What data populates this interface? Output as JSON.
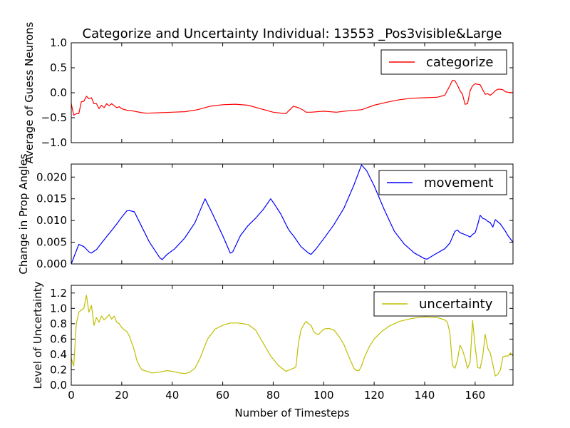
{
  "chart_data": [
    {
      "type": "line",
      "title": "Categorize and Uncertainty Individual: 13553 _Pos3visible&Large",
      "ylabel": "Average of Guess Neurons",
      "xlabel": "",
      "xlim": [
        0,
        175
      ],
      "ylim": [
        -1.0,
        1.0
      ],
      "yticks": [
        "1.0",
        "0.5",
        "0.0",
        "−0.5",
        "−1.0"
      ],
      "ytick_values": [
        1.0,
        0.5,
        0.0,
        -0.5,
        -1.0
      ],
      "legend_position": "top-right",
      "series": [
        {
          "name": "categorize",
          "color": "#ff0000",
          "x": [
            0,
            1,
            2,
            3,
            4,
            5,
            6,
            7,
            8,
            9,
            10,
            11,
            12,
            13,
            14,
            15,
            16,
            17,
            18,
            19,
            20,
            22,
            24,
            26,
            28,
            30,
            35,
            40,
            45,
            50,
            55,
            60,
            65,
            70,
            75,
            80,
            85,
            88,
            90,
            92,
            93,
            95,
            100,
            105,
            110,
            115,
            120,
            125,
            130,
            135,
            140,
            145,
            148,
            150,
            151,
            152,
            153,
            154,
            155,
            156,
            157,
            158,
            159,
            160,
            162,
            163,
            164,
            165,
            166,
            167,
            168,
            169,
            170,
            171,
            172,
            173,
            175
          ],
          "y": [
            -0.22,
            -0.45,
            -0.42,
            -0.42,
            -0.18,
            -0.17,
            -0.07,
            -0.12,
            -0.1,
            -0.22,
            -0.22,
            -0.32,
            -0.25,
            -0.3,
            -0.22,
            -0.26,
            -0.22,
            -0.26,
            -0.3,
            -0.28,
            -0.32,
            -0.35,
            -0.36,
            -0.38,
            -0.4,
            -0.41,
            -0.4,
            -0.39,
            -0.38,
            -0.34,
            -0.27,
            -0.24,
            -0.23,
            -0.25,
            -0.32,
            -0.39,
            -0.42,
            -0.27,
            -0.3,
            -0.35,
            -0.39,
            -0.39,
            -0.37,
            -0.39,
            -0.36,
            -0.34,
            -0.25,
            -0.19,
            -0.14,
            -0.11,
            -0.1,
            -0.09,
            -0.05,
            0.14,
            0.25,
            0.24,
            0.15,
            0.04,
            -0.03,
            -0.23,
            -0.22,
            0.04,
            0.14,
            0.18,
            0.16,
            0.06,
            -0.03,
            -0.02,
            -0.05,
            -0.01,
            0.04,
            0.07,
            0.07,
            0.06,
            0.02,
            0.01,
            0.0
          ]
        }
      ]
    },
    {
      "type": "line",
      "title": "",
      "ylabel": "Change in Prop Angles",
      "xlabel": "",
      "xlim": [
        0,
        175
      ],
      "ylim": [
        0.0,
        0.023
      ],
      "yticks": [
        "0.020",
        "0.015",
        "0.010",
        "0.005",
        "0.000"
      ],
      "ytick_values": [
        0.02,
        0.015,
        0.01,
        0.005,
        0.0
      ],
      "legend_position": "top-right",
      "series": [
        {
          "name": "movement",
          "color": "#0000ff",
          "x": [
            0,
            3,
            5,
            7,
            8,
            10,
            12,
            14,
            16,
            18,
            20,
            21,
            22,
            23,
            25,
            28,
            31,
            35,
            36,
            38,
            41,
            45,
            49,
            53,
            56,
            60,
            63,
            64,
            67,
            70,
            73,
            76,
            79,
            80,
            83,
            86,
            87,
            88,
            91,
            94,
            95,
            97,
            100,
            104,
            108,
            112,
            115,
            117,
            120,
            124,
            128,
            132,
            136,
            140,
            141,
            144,
            148,
            150,
            152,
            153,
            154,
            155,
            157,
            158,
            159,
            160,
            161,
            162,
            163,
            164,
            165,
            166,
            167,
            168,
            170,
            172,
            173,
            175
          ],
          "y": [
            0.0,
            0.0045,
            0.004,
            0.0028,
            0.0025,
            0.0033,
            0.0048,
            0.0063,
            0.0077,
            0.0092,
            0.0108,
            0.0115,
            0.0122,
            0.0123,
            0.012,
            0.0085,
            0.005,
            0.0015,
            0.001,
            0.0022,
            0.0035,
            0.006,
            0.0095,
            0.015,
            0.0115,
            0.0065,
            0.0025,
            0.0028,
            0.0065,
            0.0088,
            0.0105,
            0.0125,
            0.015,
            0.0142,
            0.0115,
            0.008,
            0.0072,
            0.0065,
            0.004,
            0.0025,
            0.0022,
            0.0035,
            0.0058,
            0.009,
            0.0128,
            0.0182,
            0.0228,
            0.0215,
            0.018,
            0.0125,
            0.0075,
            0.0045,
            0.0025,
            0.0012,
            0.0011,
            0.0022,
            0.0035,
            0.0048,
            0.0075,
            0.0078,
            0.0072,
            0.007,
            0.0065,
            0.0062,
            0.0068,
            0.0072,
            0.009,
            0.0112,
            0.0105,
            0.0103,
            0.0098,
            0.0095,
            0.0085,
            0.0102,
            0.0092,
            0.0075,
            0.0065,
            0.005
          ]
        }
      ]
    },
    {
      "type": "line",
      "title": "",
      "ylabel": "Level of Uncertainty",
      "xlabel": "Number of Timesteps",
      "xlim": [
        0,
        175
      ],
      "ylim": [
        0.0,
        1.3
      ],
      "yticks": [
        "1.2",
        "1.0",
        "0.8",
        "0.6",
        "0.4",
        "0.2",
        "0.0"
      ],
      "ytick_values": [
        1.2,
        1.0,
        0.8,
        0.6,
        0.4,
        0.2,
        0.0
      ],
      "xticks": [
        "0",
        "20",
        "40",
        "60",
        "80",
        "100",
        "120",
        "140",
        "160"
      ],
      "xtick_values": [
        0,
        20,
        40,
        60,
        80,
        100,
        120,
        140,
        160
      ],
      "legend_position": "top-right",
      "series": [
        {
          "name": "uncertainty",
          "color": "#bfbf00",
          "x": [
            0,
            1,
            2,
            3,
            4,
            5,
            6,
            7,
            8,
            9,
            10,
            11,
            12,
            13,
            14,
            15,
            16,
            17,
            18,
            19,
            20,
            21,
            22,
            23,
            24,
            25,
            26,
            27,
            28,
            30,
            32,
            35,
            38,
            40,
            43,
            45,
            47,
            49,
            51,
            54,
            57,
            60,
            63,
            66,
            70,
            73,
            76,
            79,
            82,
            85,
            88,
            89,
            90,
            91,
            92,
            93,
            94,
            95,
            96,
            97,
            98,
            100,
            102,
            104,
            106,
            108,
            110,
            112,
            113,
            114,
            115,
            116,
            118,
            120,
            123,
            126,
            130,
            135,
            140,
            145,
            148,
            149,
            150,
            151,
            152,
            153,
            154,
            155,
            156,
            157,
            158,
            159,
            160,
            161,
            162,
            163,
            164,
            165,
            166,
            167,
            168,
            169,
            170,
            171,
            172,
            173,
            174,
            175
          ],
          "y": [
            0.35,
            0.25,
            0.8,
            0.95,
            0.98,
            1.0,
            1.17,
            0.95,
            1.04,
            0.78,
            0.88,
            0.82,
            0.9,
            0.85,
            0.88,
            0.92,
            0.86,
            0.9,
            0.82,
            0.8,
            0.75,
            0.72,
            0.7,
            0.64,
            0.55,
            0.45,
            0.32,
            0.25,
            0.2,
            0.18,
            0.16,
            0.17,
            0.19,
            0.18,
            0.16,
            0.15,
            0.17,
            0.22,
            0.35,
            0.6,
            0.73,
            0.78,
            0.81,
            0.81,
            0.79,
            0.72,
            0.55,
            0.38,
            0.26,
            0.18,
            0.22,
            0.24,
            0.55,
            0.72,
            0.78,
            0.83,
            0.8,
            0.78,
            0.7,
            0.67,
            0.66,
            0.73,
            0.74,
            0.72,
            0.64,
            0.53,
            0.37,
            0.22,
            0.19,
            0.19,
            0.25,
            0.35,
            0.5,
            0.6,
            0.7,
            0.77,
            0.83,
            0.87,
            0.89,
            0.88,
            0.85,
            0.82,
            0.68,
            0.26,
            0.22,
            0.33,
            0.52,
            0.46,
            0.35,
            0.22,
            0.3,
            0.84,
            0.5,
            0.23,
            0.22,
            0.38,
            0.66,
            0.48,
            0.42,
            0.27,
            0.12,
            0.14,
            0.2,
            0.37,
            0.38,
            0.38,
            0.42,
            0.38
          ]
        }
      ]
    }
  ]
}
